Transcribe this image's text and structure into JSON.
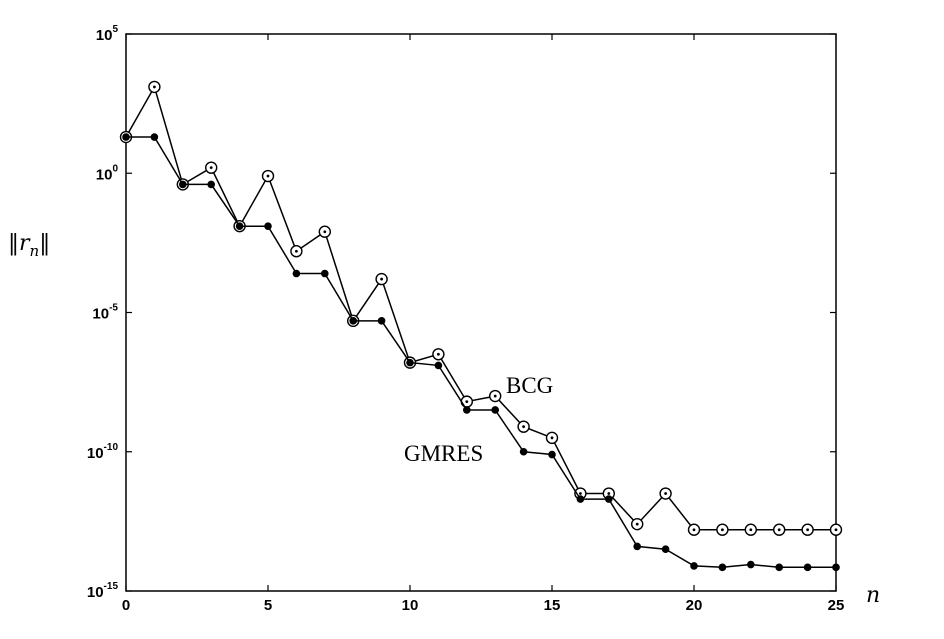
{
  "chart_data": {
    "type": "line",
    "title": "",
    "xlabel": "n",
    "ylabel": "||r_n||",
    "y_scale": "log",
    "xlim": [
      0,
      25
    ],
    "ylim_exponent": [
      -15,
      5
    ],
    "x_ticks": [
      "0",
      "5",
      "10",
      "15",
      "20",
      "25"
    ],
    "y_ticks": [
      {
        "base": "10",
        "exp": "5"
      },
      {
        "base": "10",
        "exp": "0"
      },
      {
        "base": "10",
        "exp": "-5"
      },
      {
        "base": "10",
        "exp": "-10"
      },
      {
        "base": "10",
        "exp": "-15"
      }
    ],
    "grid": false,
    "x": [
      0,
      1,
      2,
      3,
      4,
      5,
      6,
      7,
      8,
      9,
      10,
      11,
      12,
      13,
      14,
      15,
      16,
      17,
      18,
      19,
      20,
      21,
      22,
      23,
      24,
      25
    ],
    "series": [
      {
        "name": "BCG",
        "marker": "open-circle",
        "log10_values": [
          1.3,
          3.1,
          -0.4,
          0.2,
          -1.9,
          -0.1,
          -2.8,
          -2.1,
          -5.3,
          -3.8,
          -6.8,
          -6.5,
          -8.2,
          -8.0,
          -9.1,
          -9.5,
          -11.5,
          -11.5,
          -12.6,
          -11.5,
          -12.8,
          -12.8,
          -12.8,
          -12.8,
          -12.8,
          -12.8
        ],
        "label_text": "BCG"
      },
      {
        "name": "GMRES",
        "marker": "filled-circle",
        "log10_values": [
          1.3,
          1.3,
          -0.4,
          -0.4,
          -1.9,
          -1.9,
          -3.6,
          -3.6,
          -5.3,
          -5.3,
          -6.8,
          -6.9,
          -8.5,
          -8.5,
          -10.0,
          -10.1,
          -11.7,
          -11.7,
          -13.4,
          -13.5,
          -14.1,
          -14.15,
          -14.05,
          -14.15,
          -14.15,
          -14.15
        ],
        "label_text": "GMRES"
      }
    ]
  }
}
